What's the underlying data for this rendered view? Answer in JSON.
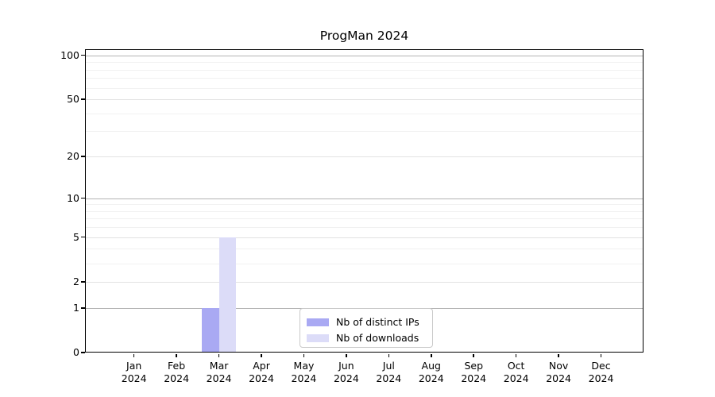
{
  "title": "ProgMan 2024",
  "chart_data": {
    "type": "bar",
    "title": "ProgMan 2024",
    "categories": [
      "Jan",
      "Feb",
      "Mar",
      "Apr",
      "May",
      "Jun",
      "Jul",
      "Aug",
      "Sep",
      "Oct",
      "Nov",
      "Dec"
    ],
    "category_year": "2024",
    "series": [
      {
        "name": "Nb of distinct IPs",
        "color": "#a9a9f3",
        "values": [
          0,
          0,
          1,
          0,
          0,
          0,
          0,
          0,
          0,
          0,
          0,
          0
        ]
      },
      {
        "name": "Nb of downloads",
        "color": "#dcdcf8",
        "values": [
          0,
          0,
          5,
          0,
          0,
          0,
          0,
          0,
          0,
          0,
          0,
          0
        ]
      }
    ],
    "yscale": "log1p",
    "yticks": [
      0,
      1,
      2,
      5,
      10,
      20,
      50,
      100
    ],
    "decade_ticks": [
      1,
      10,
      100
    ],
    "ylim": [
      0,
      110
    ],
    "xlabel": "",
    "ylabel": "",
    "grid": "both",
    "legend_position": "lower center"
  },
  "colors": {
    "bar_distinct_ips": "#a9a9f3",
    "bar_downloads": "#dcdcf8",
    "grid_decade": "#b3b3b3",
    "grid_major": "#e2e2e2",
    "grid_minor": "#f1f1f1",
    "spine": "#000000",
    "background": "#ffffff"
  }
}
